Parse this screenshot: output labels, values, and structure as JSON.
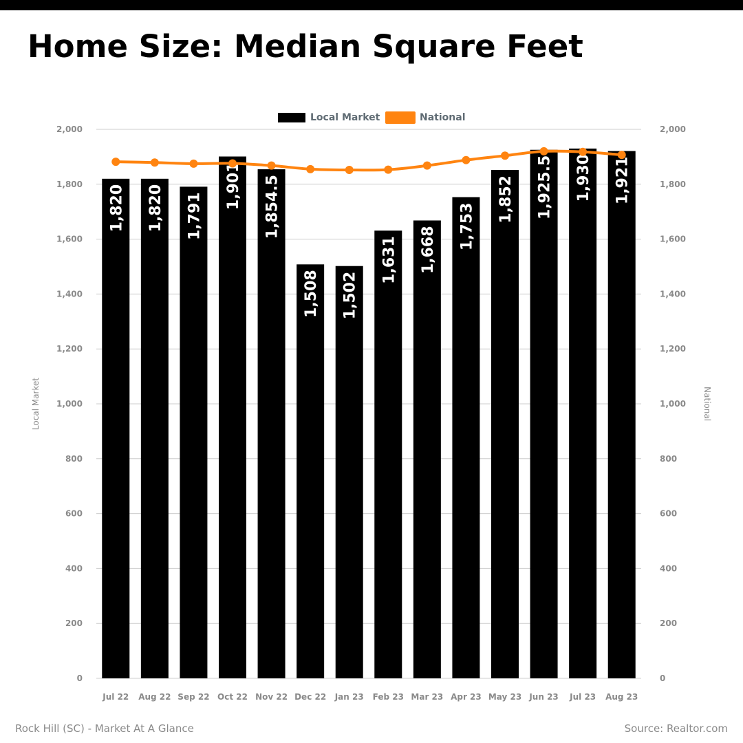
{
  "header": {
    "title": "Home Size: Median Square Feet"
  },
  "footer": {
    "left": "Rock Hill (SC) - Market At A Glance",
    "right": "Source: Realtor.com"
  },
  "colors": {
    "bars": "#000000",
    "line": "#ff8410",
    "grid": "#cccccc",
    "tick": "#8a8a8a",
    "legend_text": "#5f6b73",
    "bar_label": "#ffffff"
  },
  "chart_data": {
    "type": "bar",
    "categories": [
      "Jul 22",
      "Aug 22",
      "Sep 22",
      "Oct 22",
      "Nov 22",
      "Dec 22",
      "Jan 23",
      "Feb 23",
      "Mar 23",
      "Apr 23",
      "May 23",
      "Jun 23",
      "Jul 23",
      "Aug 23"
    ],
    "series": [
      {
        "name": "Local Market",
        "type": "bar",
        "axis": "left",
        "values": [
          1820,
          1820,
          1791,
          1901,
          1854.5,
          1508,
          1502,
          1631,
          1668,
          1753,
          1852,
          1925.5,
          1930,
          1921
        ],
        "labels": [
          "1,820",
          "1,820",
          "1,791",
          "1,901",
          "1,854.5",
          "1,508",
          "1,502",
          "1,631",
          "1,668",
          "1,753",
          "1,852",
          "1,925.5",
          "1,930",
          "1,921"
        ]
      },
      {
        "name": "National",
        "type": "line",
        "axis": "right",
        "values": [
          1882,
          1879,
          1875,
          1876,
          1868,
          1855,
          1852,
          1853,
          1868,
          1888,
          1904,
          1920,
          1918,
          1907
        ]
      }
    ],
    "ylabel": "Local Market",
    "y2label": "National",
    "ylim": [
      0,
      2000
    ],
    "y2lim": [
      0,
      2000
    ],
    "yticks": [
      0,
      200,
      400,
      600,
      800,
      1000,
      1200,
      1400,
      1600,
      1800,
      2000
    ],
    "ytick_labels": [
      "0",
      "200",
      "400",
      "600",
      "800",
      "1,000",
      "1,200",
      "1,400",
      "1,600",
      "1,800",
      "2,000"
    ],
    "grid": true,
    "legend_position": "top-center"
  }
}
